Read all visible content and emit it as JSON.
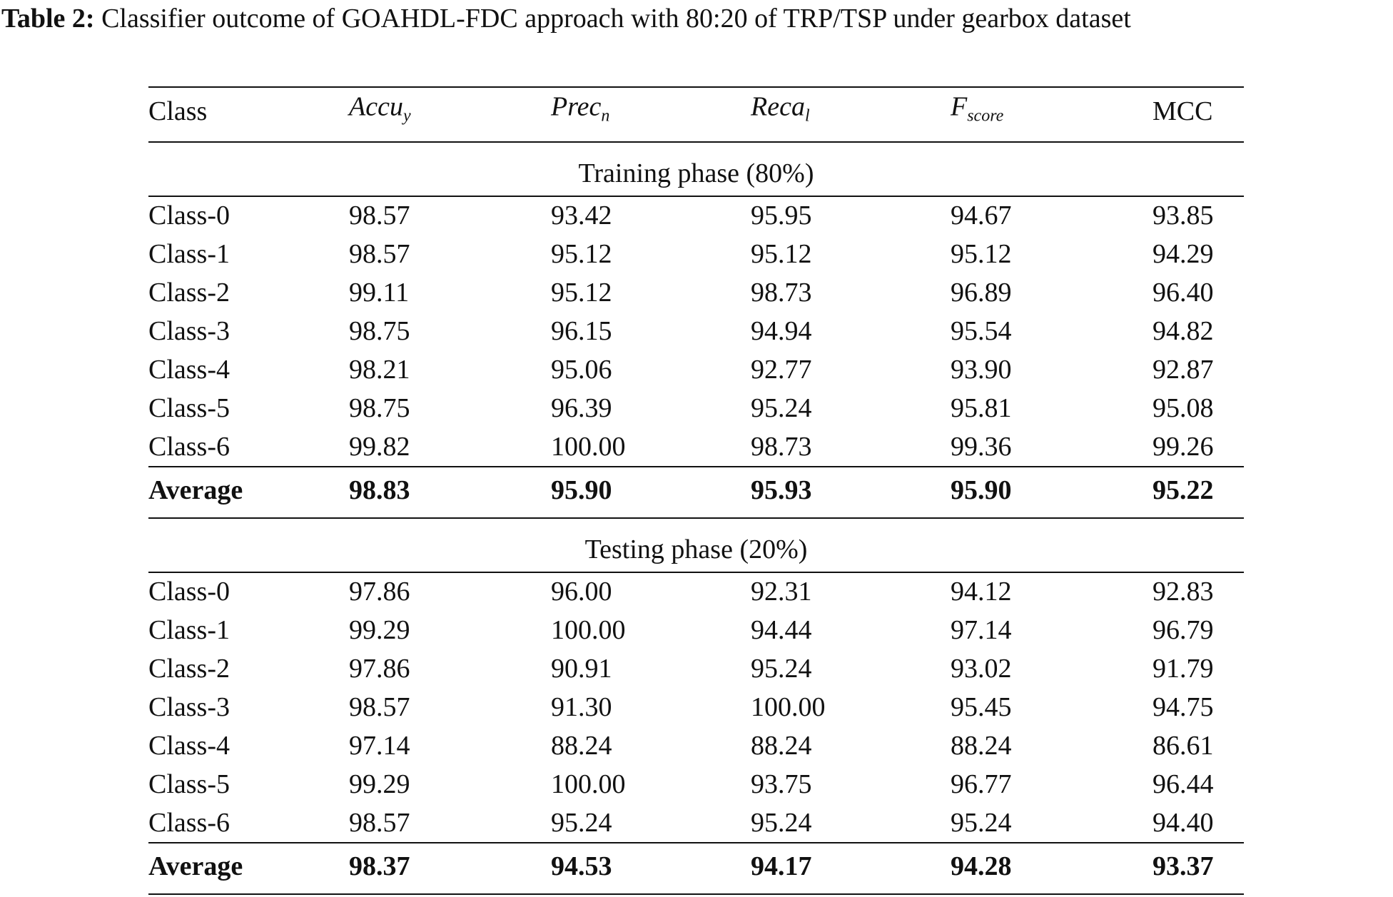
{
  "caption": {
    "label": "Table 2:",
    "text": "Classifier outcome of GOAHDL-FDC approach with 80:20 of TRP/TSP under gearbox dataset"
  },
  "table": {
    "header": [
      {
        "text": "Class"
      },
      {
        "text": "Accu",
        "sub": "y"
      },
      {
        "text": "Prec",
        "sub": "n"
      },
      {
        "text": "Reca",
        "sub": "l"
      },
      {
        "text": "F",
        "sub": "score"
      },
      {
        "text": "MCC"
      }
    ],
    "sections": [
      {
        "title": "Training phase (80%)",
        "rows": [
          [
            "Class-0",
            "98.57",
            "93.42",
            "95.95",
            "94.67",
            "93.85"
          ],
          [
            "Class-1",
            "98.57",
            "95.12",
            "95.12",
            "95.12",
            "94.29"
          ],
          [
            "Class-2",
            "99.11",
            "95.12",
            "98.73",
            "96.89",
            "96.40"
          ],
          [
            "Class-3",
            "98.75",
            "96.15",
            "94.94",
            "95.54",
            "94.82"
          ],
          [
            "Class-4",
            "98.21",
            "95.06",
            "92.77",
            "93.90",
            "92.87"
          ],
          [
            "Class-5",
            "98.75",
            "96.39",
            "95.24",
            "95.81",
            "95.08"
          ],
          [
            "Class-6",
            "99.82",
            "100.00",
            "98.73",
            "99.36",
            "99.26"
          ]
        ],
        "average": [
          "Average",
          "98.83",
          "95.90",
          "95.93",
          "95.90",
          "95.22"
        ]
      },
      {
        "title": "Testing phase (20%)",
        "rows": [
          [
            "Class-0",
            "97.86",
            "96.00",
            "92.31",
            "94.12",
            "92.83"
          ],
          [
            "Class-1",
            "99.29",
            "100.00",
            "94.44",
            "97.14",
            "96.79"
          ],
          [
            "Class-2",
            "97.86",
            "90.91",
            "95.24",
            "93.02",
            "91.79"
          ],
          [
            "Class-3",
            "98.57",
            "91.30",
            "100.00",
            "95.45",
            "94.75"
          ],
          [
            "Class-4",
            "97.14",
            "88.24",
            "88.24",
            "88.24",
            "86.61"
          ],
          [
            "Class-5",
            "99.29",
            "100.00",
            "93.75",
            "96.77",
            "96.44"
          ],
          [
            "Class-6",
            "98.57",
            "95.24",
            "95.24",
            "95.24",
            "94.40"
          ]
        ],
        "average": [
          "Average",
          "98.37",
          "94.53",
          "94.17",
          "94.28",
          "93.37"
        ]
      }
    ]
  }
}
